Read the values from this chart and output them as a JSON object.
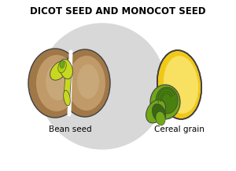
{
  "title": "DICOT SEED AND MONOCOT SEED",
  "label_bean": "Bean seed",
  "label_cereal": "Cereal grain",
  "bg_color": "#ffffff",
  "title_fontsize": 8.5,
  "label_fontsize": 7.5,
  "brown_coat": "#a07848",
  "brown_cotyledon": "#c09a68",
  "brown_inner": "#c8a878",
  "green_yellow": "#c8d820",
  "green_light": "#b0d010",
  "green_mid": "#70a818",
  "green_dark": "#3a6810",
  "yellow_endosperm": "#f0c818",
  "yellow_light": "#f8e060",
  "outline_color": "#404040",
  "gray_swirl": "#d8d8d8",
  "white": "#ffffff"
}
